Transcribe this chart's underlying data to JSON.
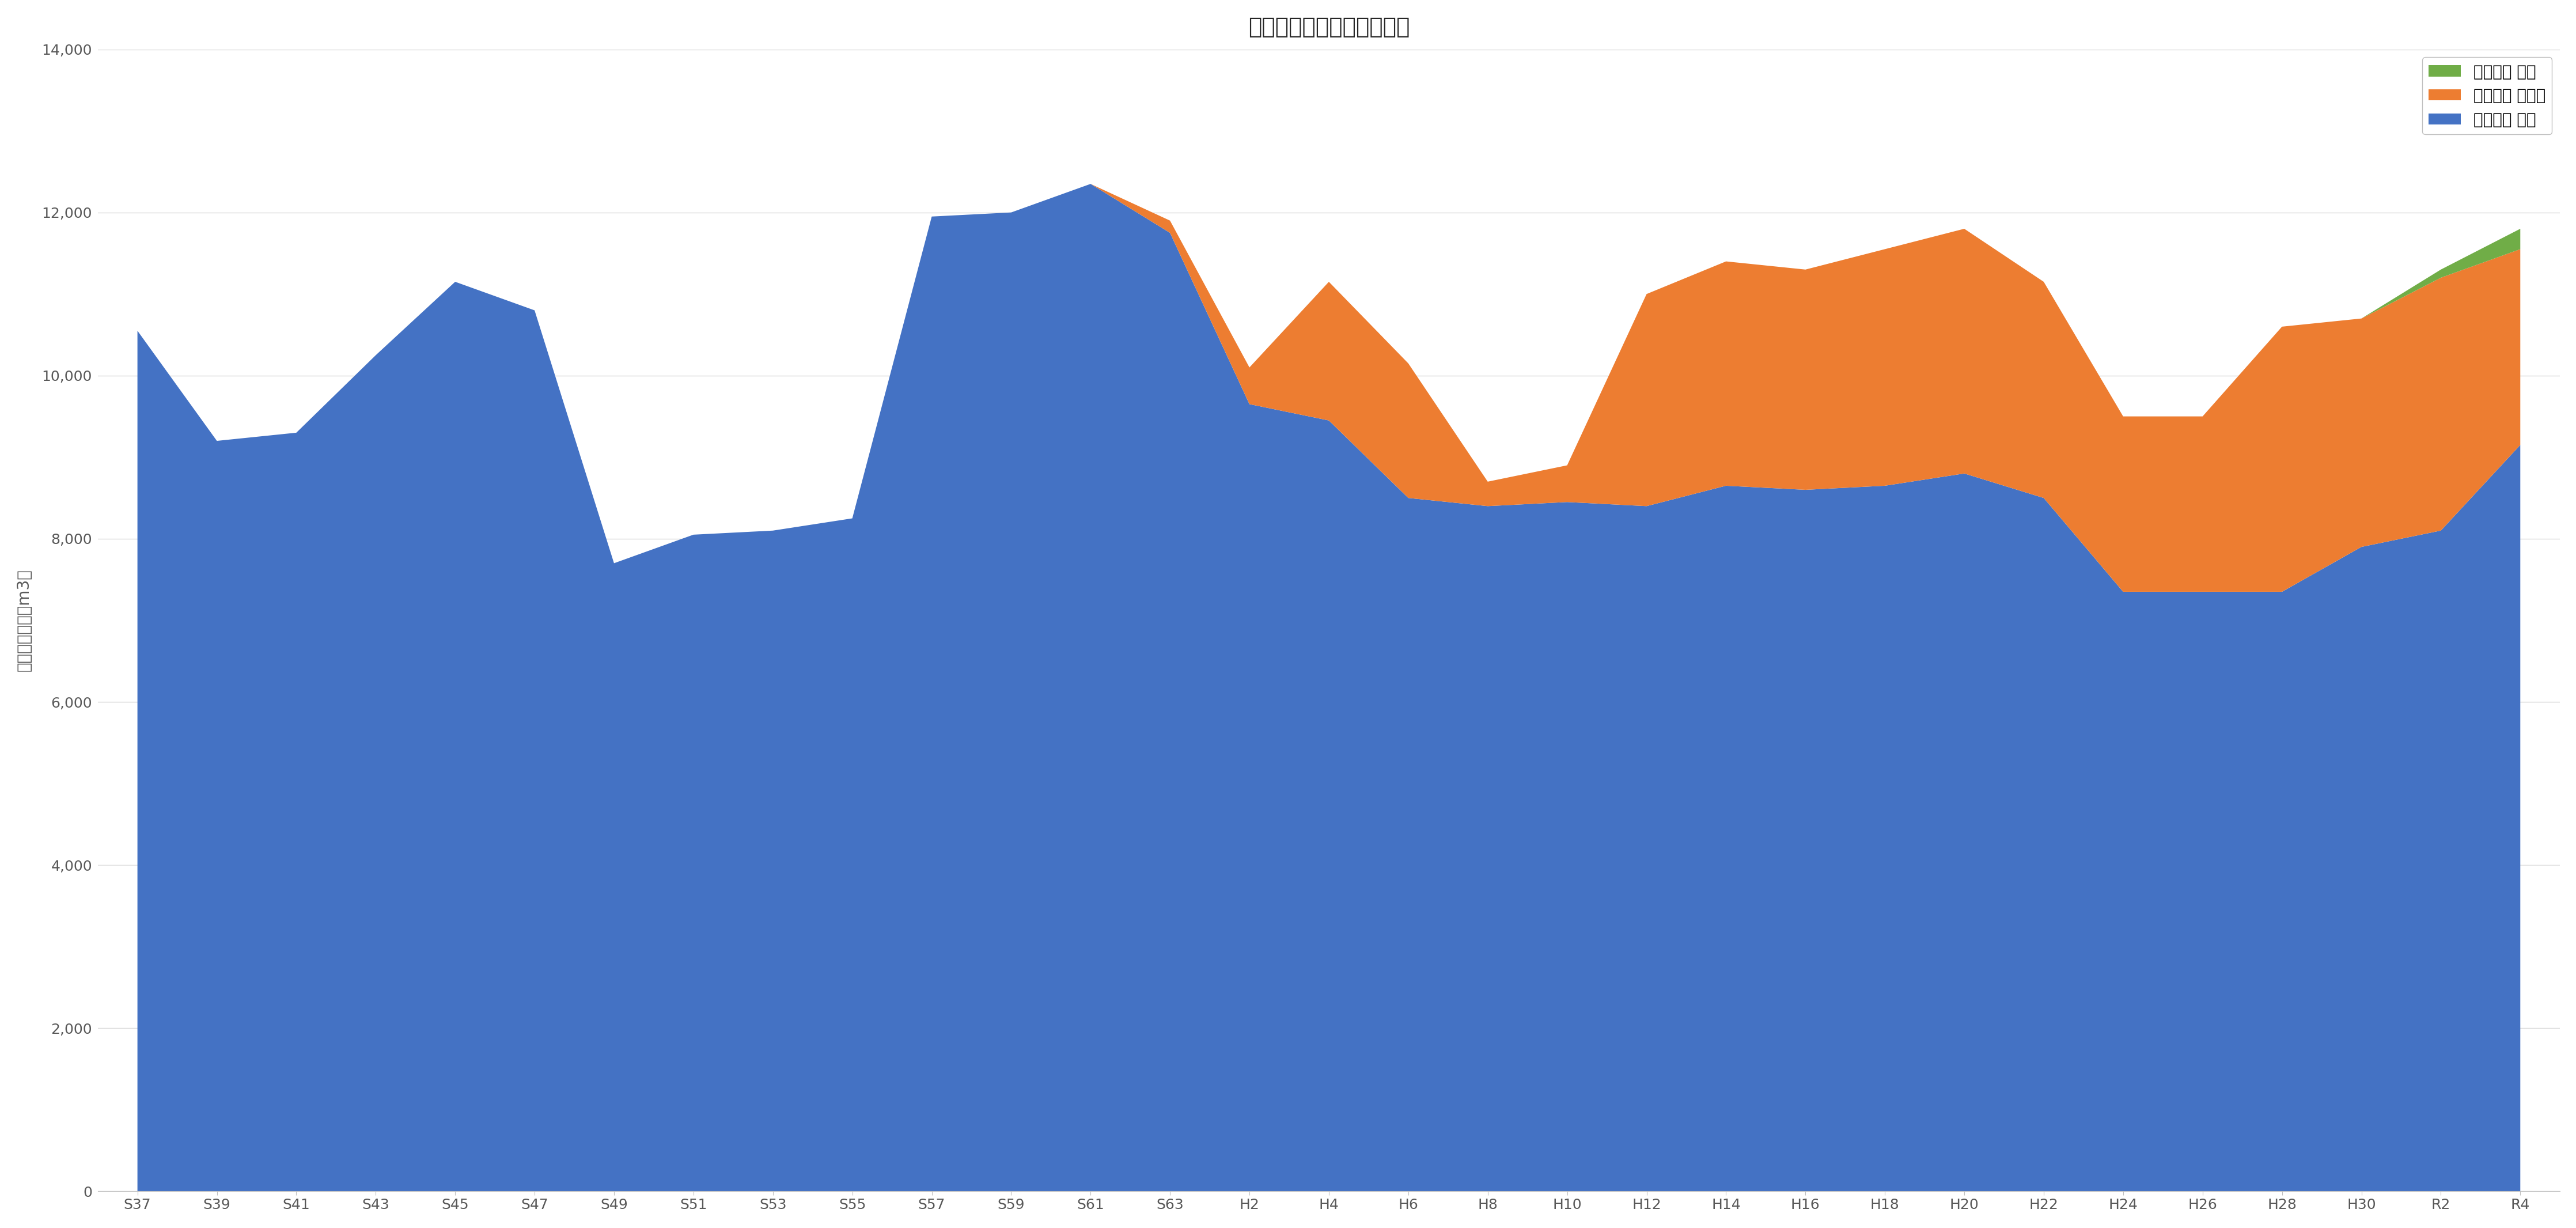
{
  "title": "給水流量の推移（年度末）",
  "ylabel": "実供給水量（千m3）",
  "categories": [
    "S37",
    "S39",
    "S41",
    "S43",
    "S45",
    "S47",
    "S49",
    "S51",
    "S53",
    "S55",
    "S57",
    "S59",
    "S61",
    "S63",
    "H2",
    "H4",
    "H6",
    "H8",
    "H10",
    "H12",
    "H14",
    "H16",
    "H18",
    "H20",
    "H22",
    "H24",
    "H26",
    "H28",
    "H30",
    "R2",
    "R4"
  ],
  "sakata": [
    10550,
    9200,
    9300,
    10250,
    11150,
    10800,
    7700,
    8050,
    8100,
    8250,
    11950,
    12000,
    12350,
    11750,
    9650,
    9450,
    8500,
    8400,
    8450,
    8400,
    8650,
    8600,
    8650,
    8800,
    8500,
    7350,
    7350,
    7350,
    7900,
    8100,
    9150
  ],
  "yahata": [
    0,
    0,
    0,
    0,
    0,
    0,
    0,
    0,
    0,
    0,
    0,
    0,
    0,
    150,
    450,
    1700,
    1650,
    300,
    450,
    2600,
    2750,
    2700,
    2900,
    3000,
    2650,
    2150,
    2150,
    3250,
    2800,
    3100,
    2400
  ],
  "fukuda": [
    0,
    0,
    0,
    0,
    0,
    0,
    0,
    0,
    0,
    0,
    0,
    0,
    0,
    0,
    0,
    0,
    0,
    0,
    0,
    0,
    0,
    0,
    0,
    0,
    0,
    0,
    0,
    0,
    0,
    100,
    250
  ],
  "color_sakata": "#4472C4",
  "color_yahata": "#ED7D31",
  "color_fukuda": "#70AD47",
  "legend_sakata": "実給水量 酒田",
  "legend_yahata": "実給水量 八幡原",
  "legend_fukuda": "実給水量 福田",
  "ylim": [
    0,
    14000
  ],
  "yticks": [
    0,
    2000,
    4000,
    6000,
    8000,
    10000,
    12000,
    14000
  ],
  "background_color": "#FFFFFF",
  "grid_color": "#D9D9D9",
  "title_fontsize": 28,
  "axis_fontsize": 20,
  "tick_fontsize": 18,
  "legend_fontsize": 20
}
